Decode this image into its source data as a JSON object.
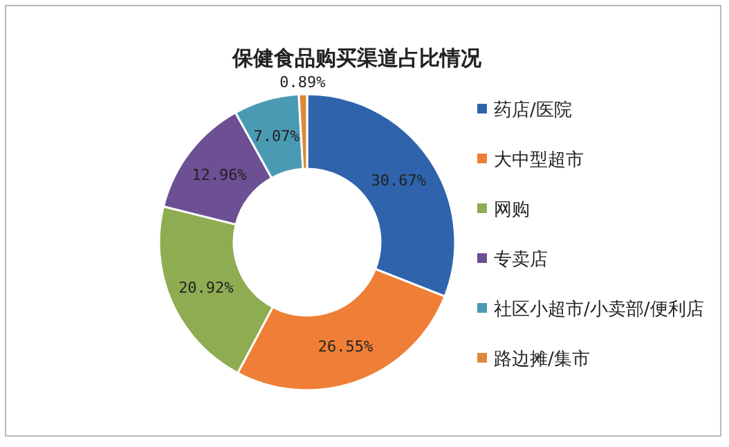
{
  "chart_data": {
    "type": "donut",
    "title": "保健食品购买渠道占比情况",
    "categories": [
      "药店/医院",
      "大中型超市",
      "网购",
      "专卖店",
      "社区小超市/小卖部/便利店",
      "路边摊/集市"
    ],
    "values": [
      30.67,
      26.55,
      20.92,
      12.96,
      7.07,
      0.89
    ],
    "colors": [
      "#2f64ad",
      "#ef7f36",
      "#8eac52",
      "#6d4f94",
      "#4a9ab4",
      "#e0883a"
    ],
    "value_labels": [
      "30.67%",
      "26.55%",
      "20.92%",
      "12.96%",
      "7.07%",
      "0.89%"
    ],
    "legend": "right"
  }
}
